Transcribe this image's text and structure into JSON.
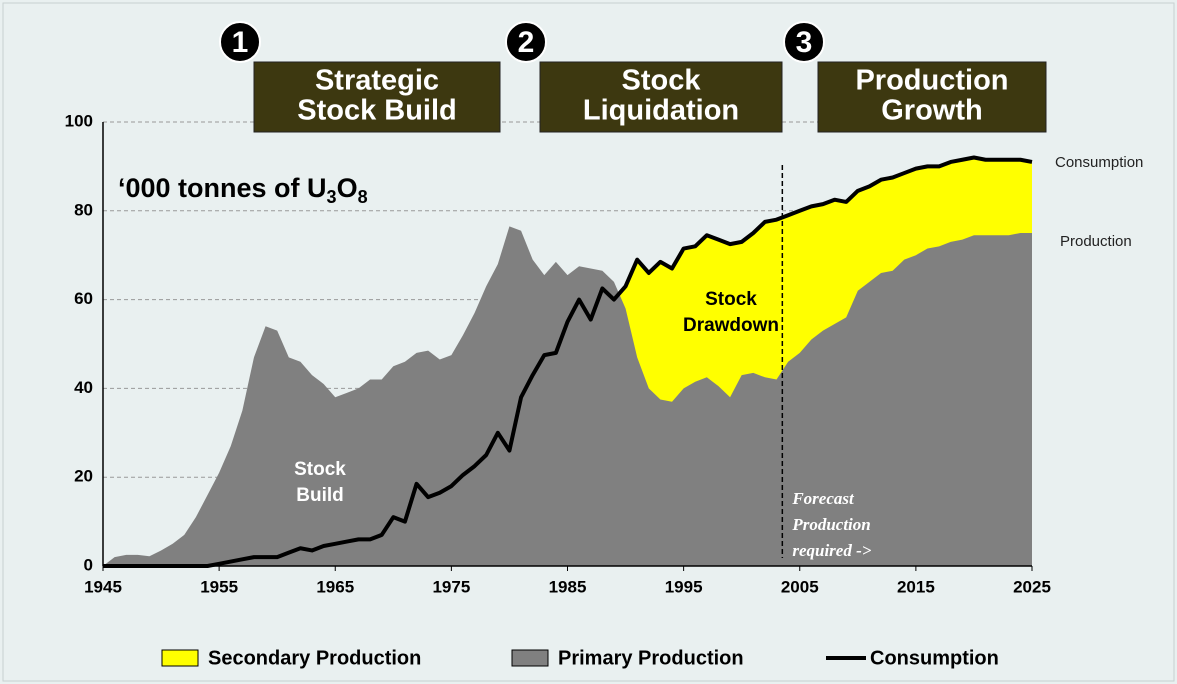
{
  "chart_data": {
    "type": "area",
    "unit_label": [
      "‘000 tonnes of U",
      "3",
      "O",
      "8"
    ],
    "phases": [
      {
        "number": 1,
        "lines": [
          "Strategic",
          "Stock Build"
        ]
      },
      {
        "number": 2,
        "lines": [
          "Stock",
          "Liquidation"
        ]
      },
      {
        "number": 3,
        "lines": [
          "Production",
          "Growth"
        ]
      }
    ],
    "annotations": [
      {
        "lines": [
          "Stock",
          "Build"
        ]
      },
      {
        "lines": [
          "Stock",
          "Drawdown"
        ]
      },
      {
        "lines": [
          "Forecast",
          "Production",
          "required ->"
        ],
        "x": 2003.5
      }
    ],
    "side_labels": [
      "Consumption",
      "Production"
    ],
    "legend": [
      {
        "name": "Secondary Production",
        "color": "#ffff00"
      },
      {
        "name": "Primary Production",
        "color": "#808080"
      },
      {
        "name": "Consumption",
        "color": "#000000"
      }
    ],
    "x": [
      1945,
      1946,
      1947,
      1948,
      1949,
      1950,
      1951,
      1952,
      1953,
      1954,
      1955,
      1956,
      1957,
      1958,
      1959,
      1960,
      1961,
      1962,
      1963,
      1964,
      1965,
      1966,
      1967,
      1968,
      1969,
      1970,
      1971,
      1972,
      1973,
      1974,
      1975,
      1976,
      1977,
      1978,
      1979,
      1980,
      1981,
      1982,
      1983,
      1984,
      1985,
      1986,
      1987,
      1988,
      1989,
      1990,
      1991,
      1992,
      1993,
      1994,
      1995,
      1996,
      1997,
      1998,
      1999,
      2000,
      2001,
      2002,
      2003,
      2004,
      2005,
      2006,
      2007,
      2008,
      2009,
      2010,
      2011,
      2012,
      2013,
      2014,
      2015,
      2016,
      2017,
      2018,
      2019,
      2020,
      2021,
      2022,
      2023,
      2024,
      2025
    ],
    "series": [
      {
        "name": "Primary Production",
        "color": "#808080",
        "values": [
          0,
          2,
          2.5,
          2.5,
          2.2,
          3.5,
          5,
          7,
          11,
          16,
          21,
          27,
          35,
          47,
          54,
          53,
          47,
          46,
          43,
          41,
          38,
          39,
          40,
          42,
          42,
          45,
          46,
          48,
          48.5,
          46.5,
          47.5,
          52,
          57,
          63,
          68,
          76.5,
          75.5,
          69,
          65.5,
          68.5,
          65.5,
          67.5,
          67,
          66.5,
          64,
          58,
          47,
          40,
          37.5,
          37,
          40,
          41.5,
          42.5,
          40.5,
          38,
          43,
          43.5,
          42.5,
          42,
          46,
          48,
          51,
          53,
          54.5,
          56,
          62,
          64,
          66,
          66.5,
          69,
          70,
          71.5,
          72,
          73,
          73.5,
          74.5,
          74.5,
          74.5,
          74.5,
          75,
          75
        ]
      },
      {
        "name": "Consumption",
        "color": "#000000",
        "fill": "#ffff00",
        "values": [
          0,
          0,
          0,
          0,
          0,
          0,
          0,
          0,
          0,
          0,
          0.5,
          1,
          1.5,
          2,
          2,
          2,
          3,
          4,
          3.5,
          4.5,
          5,
          5.5,
          6,
          6,
          7,
          11,
          10,
          18.5,
          15.5,
          16.5,
          18,
          20.5,
          22.5,
          25,
          30,
          26,
          38,
          43,
          47.5,
          48,
          55,
          60,
          55.5,
          62.5,
          60,
          63,
          69,
          66,
          68.5,
          67,
          71.5,
          72,
          74.5,
          73.5,
          72.5,
          73,
          75,
          77.5,
          78,
          79,
          80,
          81,
          81.5,
          82.5,
          82,
          84.5,
          85.5,
          87,
          87.5,
          88.5,
          89.5,
          90,
          90,
          91,
          91.5,
          92,
          91.5,
          91.5,
          91.5,
          91.5,
          91
        ]
      }
    ],
    "xlim": [
      1945,
      2025
    ],
    "ylim": [
      0,
      100
    ],
    "xticks": [
      1945,
      1955,
      1965,
      1975,
      1985,
      1995,
      2005,
      2015,
      2025
    ],
    "yticks": [
      0,
      20,
      40,
      60,
      80,
      100
    ],
    "grid": true
  }
}
